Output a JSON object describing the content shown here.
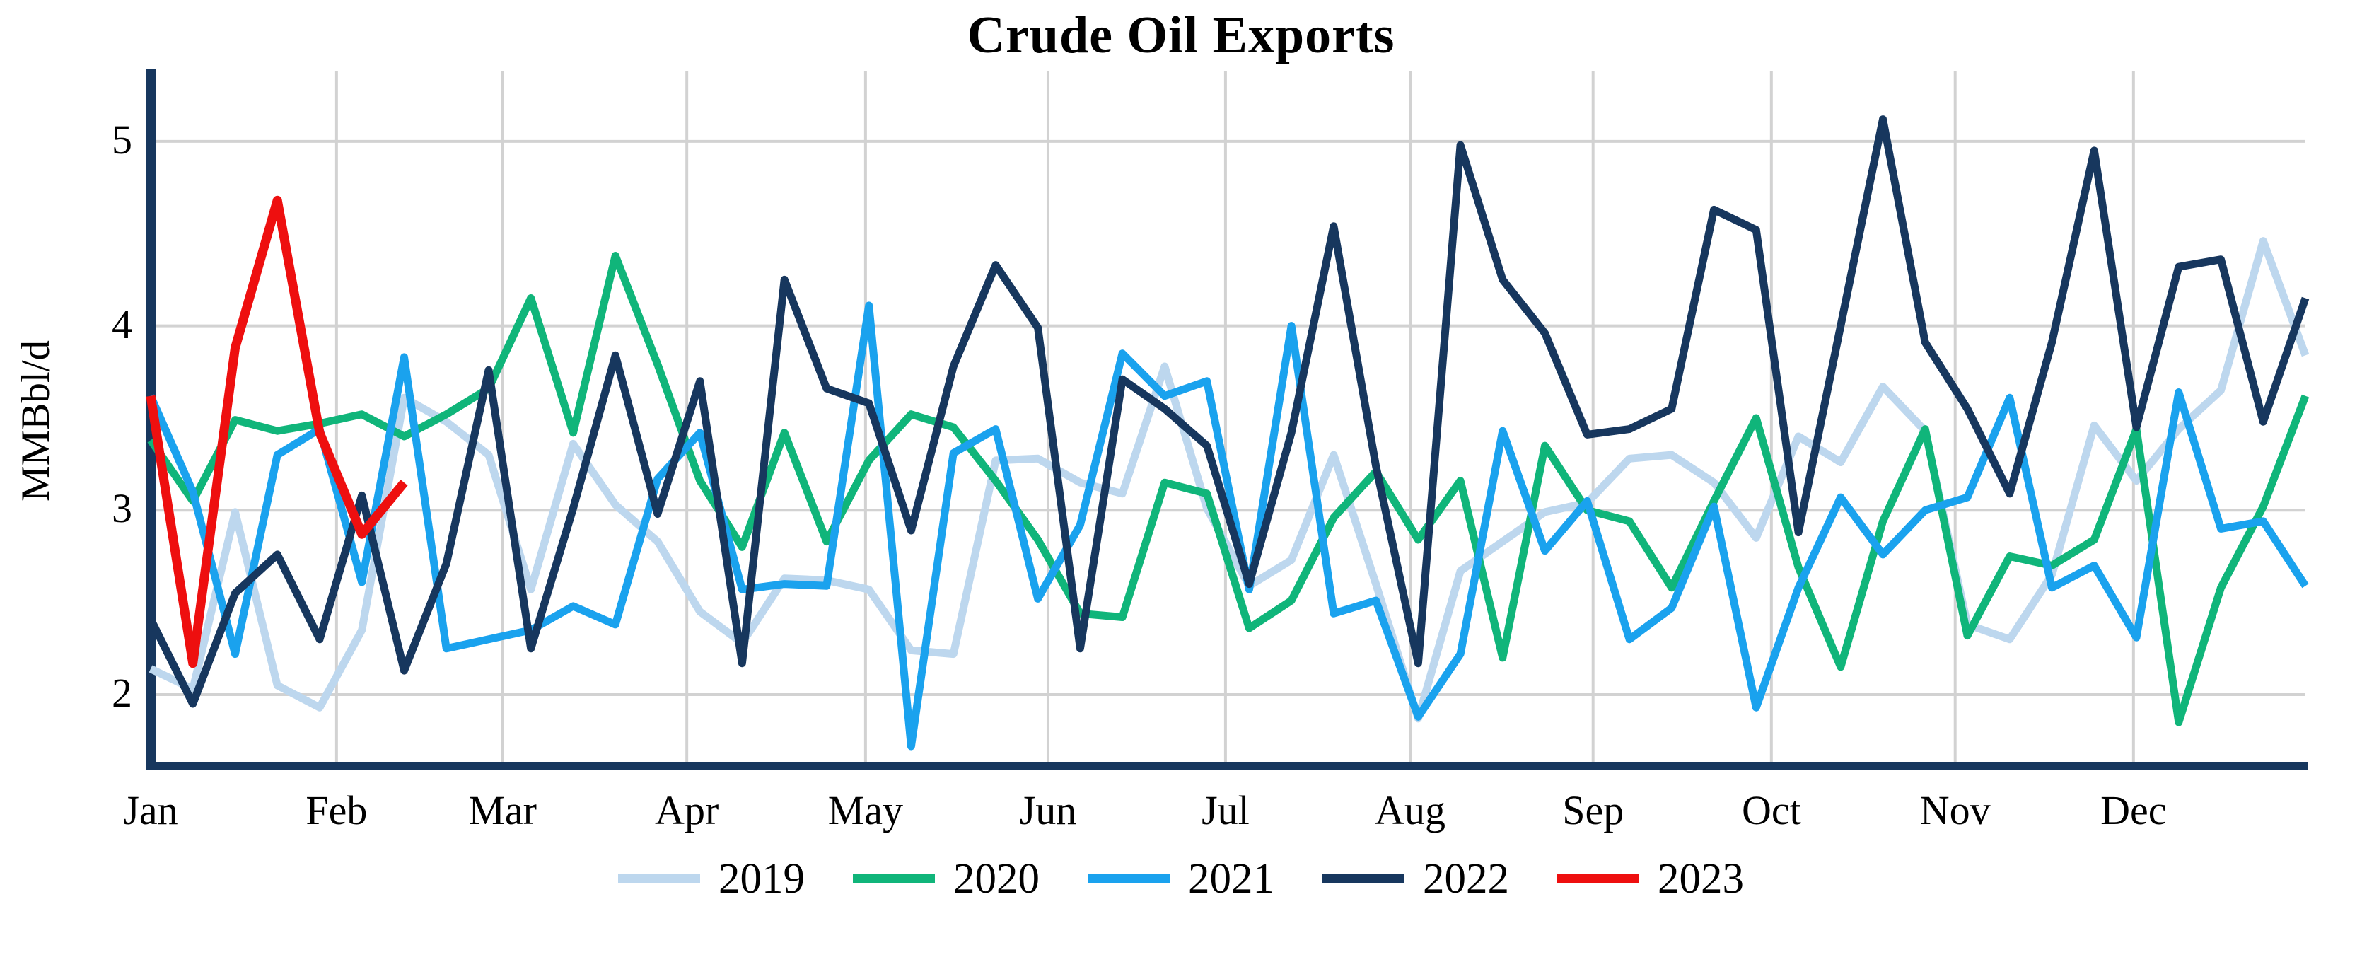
{
  "title": "Crude Oil Exports",
  "y_axis": {
    "label": "MMBbl/d",
    "ticks": [
      "5",
      "4",
      "3",
      "2"
    ]
  },
  "x_axis": {
    "months": [
      "Jan",
      "Feb",
      "Mar",
      "Apr",
      "May",
      "Jun",
      "Jul",
      "Aug",
      "Sep",
      "Oct",
      "Nov",
      "Dec"
    ]
  },
  "colors": {
    "axis": "#17375e",
    "gridline": "#d2d2d2",
    "text": "#000000"
  },
  "chart_data": {
    "type": "line",
    "title": "Crude Oil Exports",
    "xlabel": "",
    "ylabel": "MMBbl/d",
    "x_unit": "week of year (weekly data)",
    "ylim": [
      1.59,
      5.38
    ],
    "yticks": [
      2,
      3,
      4,
      5
    ],
    "grid": "both",
    "legend_position": "bottom-center",
    "month_tick_week_positions": [
      0,
      4.4,
      8.33,
      12.69,
      16.92,
      21.24,
      25.44,
      29.81,
      34.14,
      38.36,
      42.71,
      46.93
    ],
    "weeks_total": 52,
    "series": [
      {
        "name": "2019",
        "color": "#bdd7ee",
        "values": [
          2.14,
          2.03,
          2.99,
          2.05,
          1.93,
          2.35,
          3.61,
          3.48,
          3.3,
          2.57,
          3.36,
          3.03,
          2.83,
          2.45,
          2.28,
          2.63,
          2.62,
          2.57,
          2.24,
          2.22,
          3.27,
          3.28,
          3.15,
          3.09,
          3.78,
          3.01,
          2.59,
          2.73,
          3.3,
          2.6,
          1.87,
          2.67,
          2.83,
          2.99,
          3.04,
          3.28,
          3.3,
          3.15,
          2.85,
          3.4,
          3.26,
          3.67,
          3.43,
          2.38,
          2.3,
          2.65,
          3.46,
          3.16,
          3.44,
          3.65,
          4.46,
          3.84
        ]
      },
      {
        "name": "2020",
        "color": "#10b57a",
        "values": [
          3.38,
          3.05,
          3.49,
          3.43,
          3.47,
          3.52,
          3.4,
          3.52,
          3.66,
          4.15,
          3.42,
          4.38,
          3.79,
          3.16,
          2.8,
          3.42,
          2.83,
          3.27,
          3.52,
          3.45,
          3.16,
          2.84,
          2.44,
          2.42,
          3.15,
          3.09,
          2.36,
          2.51,
          2.96,
          3.21,
          2.84,
          3.16,
          2.2,
          3.35,
          3.0,
          2.94,
          2.58,
          3.05,
          3.5,
          2.69,
          2.15,
          2.94,
          3.44,
          2.32,
          2.75,
          2.7,
          2.84,
          3.44,
          1.85,
          2.58,
          3.02,
          3.62
        ]
      },
      {
        "name": "2021",
        "color": "#1aa2ee",
        "values": [
          3.62,
          3.1,
          2.22,
          3.3,
          3.44,
          2.61,
          3.83,
          2.25,
          2.3,
          2.35,
          2.48,
          2.38,
          3.17,
          3.42,
          2.57,
          2.6,
          2.59,
          4.11,
          1.72,
          3.31,
          3.44,
          2.52,
          2.92,
          3.85,
          3.62,
          3.7,
          2.57,
          4.0,
          2.44,
          2.51,
          1.88,
          2.22,
          3.43,
          2.78,
          3.05,
          2.3,
          2.47,
          3.02,
          1.93,
          2.58,
          3.07,
          2.76,
          3.0,
          3.07,
          3.61,
          2.58,
          2.7,
          2.31,
          3.64,
          2.9,
          2.94,
          2.59
        ]
      },
      {
        "name": "2022",
        "color": "#17375e",
        "values": [
          2.41,
          1.95,
          2.55,
          2.76,
          2.3,
          3.08,
          2.13,
          2.71,
          3.76,
          2.25,
          3.01,
          3.84,
          2.98,
          3.7,
          2.17,
          4.25,
          3.66,
          3.58,
          2.89,
          3.78,
          4.33,
          3.99,
          2.25,
          3.71,
          3.55,
          3.35,
          2.6,
          3.42,
          4.54,
          3.24,
          2.17,
          4.98,
          4.25,
          3.96,
          3.41,
          3.44,
          3.55,
          4.63,
          4.52,
          2.88,
          4.0,
          5.12,
          3.91,
          3.55,
          3.09,
          3.91,
          4.95,
          3.45,
          4.32,
          4.36,
          3.48,
          4.15
        ]
      },
      {
        "name": "2023",
        "color": "#ee0f0f",
        "values": [
          3.62,
          2.17,
          3.88,
          4.68,
          3.42,
          2.87,
          3.15
        ]
      }
    ]
  }
}
